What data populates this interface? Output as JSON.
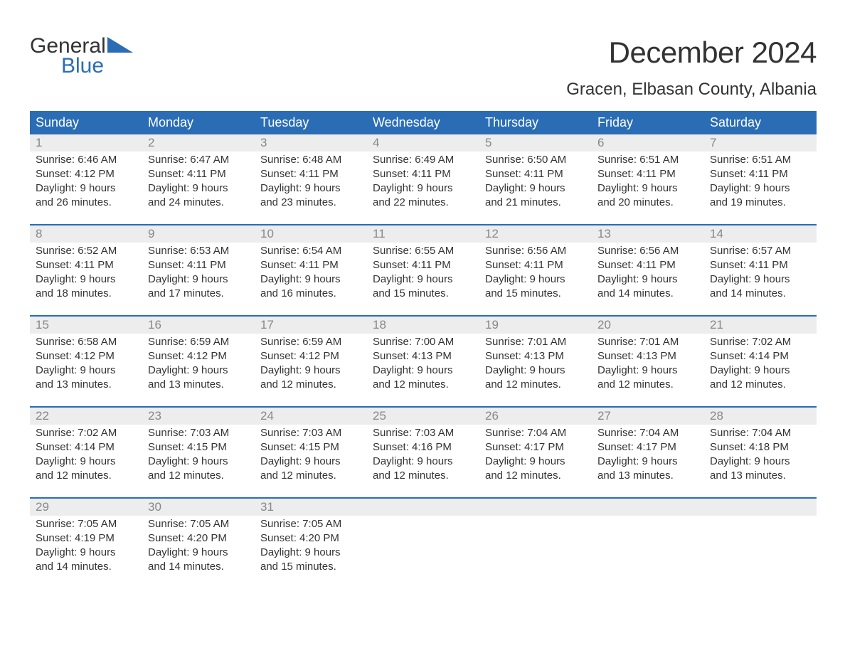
{
  "logo": {
    "word1": "General",
    "word2": "Blue",
    "tri_color": "#2a6db5",
    "word2_color": "#2a6db5"
  },
  "title": "December 2024",
  "location": "Gracen, Elbasan County, Albania",
  "header_bg": "#2a6db5",
  "header_fg": "#ffffff",
  "daynum_bg": "#ededed",
  "daynum_fg": "#888888",
  "border_color": "#2a6db5",
  "text_color": "#333333",
  "weekdays": [
    "Sunday",
    "Monday",
    "Tuesday",
    "Wednesday",
    "Thursday",
    "Friday",
    "Saturday"
  ],
  "weeks": [
    [
      {
        "n": "1",
        "sr": "Sunrise: 6:46 AM",
        "ss": "Sunset: 4:12 PM",
        "d1": "Daylight: 9 hours",
        "d2": "and 26 minutes."
      },
      {
        "n": "2",
        "sr": "Sunrise: 6:47 AM",
        "ss": "Sunset: 4:11 PM",
        "d1": "Daylight: 9 hours",
        "d2": "and 24 minutes."
      },
      {
        "n": "3",
        "sr": "Sunrise: 6:48 AM",
        "ss": "Sunset: 4:11 PM",
        "d1": "Daylight: 9 hours",
        "d2": "and 23 minutes."
      },
      {
        "n": "4",
        "sr": "Sunrise: 6:49 AM",
        "ss": "Sunset: 4:11 PM",
        "d1": "Daylight: 9 hours",
        "d2": "and 22 minutes."
      },
      {
        "n": "5",
        "sr": "Sunrise: 6:50 AM",
        "ss": "Sunset: 4:11 PM",
        "d1": "Daylight: 9 hours",
        "d2": "and 21 minutes."
      },
      {
        "n": "6",
        "sr": "Sunrise: 6:51 AM",
        "ss": "Sunset: 4:11 PM",
        "d1": "Daylight: 9 hours",
        "d2": "and 20 minutes."
      },
      {
        "n": "7",
        "sr": "Sunrise: 6:51 AM",
        "ss": "Sunset: 4:11 PM",
        "d1": "Daylight: 9 hours",
        "d2": "and 19 minutes."
      }
    ],
    [
      {
        "n": "8",
        "sr": "Sunrise: 6:52 AM",
        "ss": "Sunset: 4:11 PM",
        "d1": "Daylight: 9 hours",
        "d2": "and 18 minutes."
      },
      {
        "n": "9",
        "sr": "Sunrise: 6:53 AM",
        "ss": "Sunset: 4:11 PM",
        "d1": "Daylight: 9 hours",
        "d2": "and 17 minutes."
      },
      {
        "n": "10",
        "sr": "Sunrise: 6:54 AM",
        "ss": "Sunset: 4:11 PM",
        "d1": "Daylight: 9 hours",
        "d2": "and 16 minutes."
      },
      {
        "n": "11",
        "sr": "Sunrise: 6:55 AM",
        "ss": "Sunset: 4:11 PM",
        "d1": "Daylight: 9 hours",
        "d2": "and 15 minutes."
      },
      {
        "n": "12",
        "sr": "Sunrise: 6:56 AM",
        "ss": "Sunset: 4:11 PM",
        "d1": "Daylight: 9 hours",
        "d2": "and 15 minutes."
      },
      {
        "n": "13",
        "sr": "Sunrise: 6:56 AM",
        "ss": "Sunset: 4:11 PM",
        "d1": "Daylight: 9 hours",
        "d2": "and 14 minutes."
      },
      {
        "n": "14",
        "sr": "Sunrise: 6:57 AM",
        "ss": "Sunset: 4:11 PM",
        "d1": "Daylight: 9 hours",
        "d2": "and 14 minutes."
      }
    ],
    [
      {
        "n": "15",
        "sr": "Sunrise: 6:58 AM",
        "ss": "Sunset: 4:12 PM",
        "d1": "Daylight: 9 hours",
        "d2": "and 13 minutes."
      },
      {
        "n": "16",
        "sr": "Sunrise: 6:59 AM",
        "ss": "Sunset: 4:12 PM",
        "d1": "Daylight: 9 hours",
        "d2": "and 13 minutes."
      },
      {
        "n": "17",
        "sr": "Sunrise: 6:59 AM",
        "ss": "Sunset: 4:12 PM",
        "d1": "Daylight: 9 hours",
        "d2": "and 12 minutes."
      },
      {
        "n": "18",
        "sr": "Sunrise: 7:00 AM",
        "ss": "Sunset: 4:13 PM",
        "d1": "Daylight: 9 hours",
        "d2": "and 12 minutes."
      },
      {
        "n": "19",
        "sr": "Sunrise: 7:01 AM",
        "ss": "Sunset: 4:13 PM",
        "d1": "Daylight: 9 hours",
        "d2": "and 12 minutes."
      },
      {
        "n": "20",
        "sr": "Sunrise: 7:01 AM",
        "ss": "Sunset: 4:13 PM",
        "d1": "Daylight: 9 hours",
        "d2": "and 12 minutes."
      },
      {
        "n": "21",
        "sr": "Sunrise: 7:02 AM",
        "ss": "Sunset: 4:14 PM",
        "d1": "Daylight: 9 hours",
        "d2": "and 12 minutes."
      }
    ],
    [
      {
        "n": "22",
        "sr": "Sunrise: 7:02 AM",
        "ss": "Sunset: 4:14 PM",
        "d1": "Daylight: 9 hours",
        "d2": "and 12 minutes."
      },
      {
        "n": "23",
        "sr": "Sunrise: 7:03 AM",
        "ss": "Sunset: 4:15 PM",
        "d1": "Daylight: 9 hours",
        "d2": "and 12 minutes."
      },
      {
        "n": "24",
        "sr": "Sunrise: 7:03 AM",
        "ss": "Sunset: 4:15 PM",
        "d1": "Daylight: 9 hours",
        "d2": "and 12 minutes."
      },
      {
        "n": "25",
        "sr": "Sunrise: 7:03 AM",
        "ss": "Sunset: 4:16 PM",
        "d1": "Daylight: 9 hours",
        "d2": "and 12 minutes."
      },
      {
        "n": "26",
        "sr": "Sunrise: 7:04 AM",
        "ss": "Sunset: 4:17 PM",
        "d1": "Daylight: 9 hours",
        "d2": "and 12 minutes."
      },
      {
        "n": "27",
        "sr": "Sunrise: 7:04 AM",
        "ss": "Sunset: 4:17 PM",
        "d1": "Daylight: 9 hours",
        "d2": "and 13 minutes."
      },
      {
        "n": "28",
        "sr": "Sunrise: 7:04 AM",
        "ss": "Sunset: 4:18 PM",
        "d1": "Daylight: 9 hours",
        "d2": "and 13 minutes."
      }
    ],
    [
      {
        "n": "29",
        "sr": "Sunrise: 7:05 AM",
        "ss": "Sunset: 4:19 PM",
        "d1": "Daylight: 9 hours",
        "d2": "and 14 minutes."
      },
      {
        "n": "30",
        "sr": "Sunrise: 7:05 AM",
        "ss": "Sunset: 4:20 PM",
        "d1": "Daylight: 9 hours",
        "d2": "and 14 minutes."
      },
      {
        "n": "31",
        "sr": "Sunrise: 7:05 AM",
        "ss": "Sunset: 4:20 PM",
        "d1": "Daylight: 9 hours",
        "d2": "and 15 minutes."
      },
      null,
      null,
      null,
      null
    ]
  ]
}
